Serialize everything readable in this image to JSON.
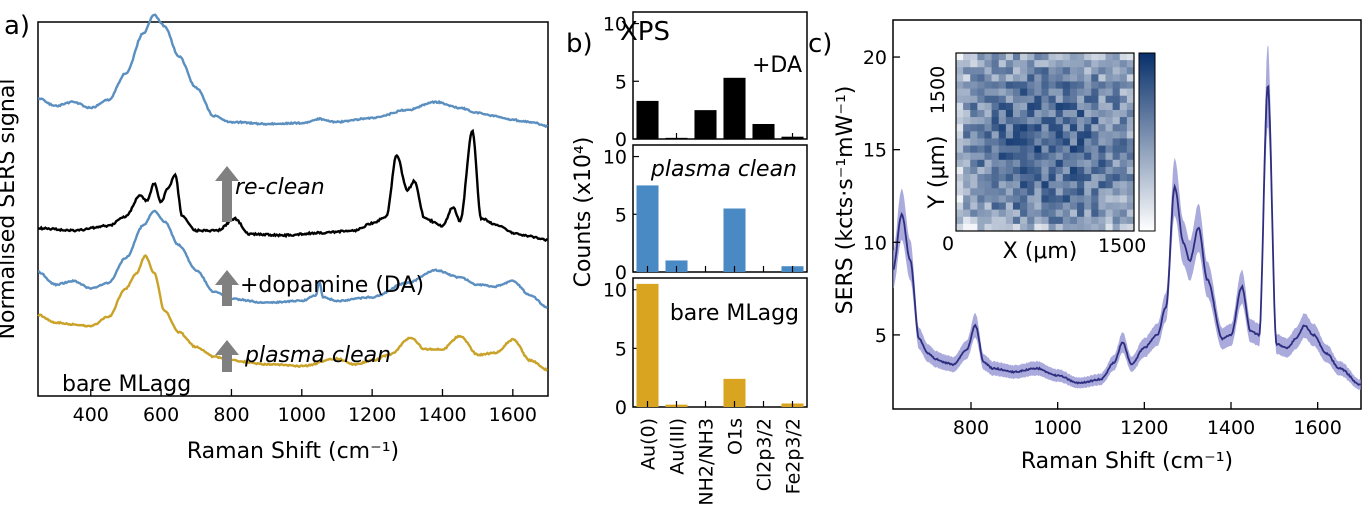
{
  "chart_data": [
    {
      "panel": "a)",
      "type": "line",
      "xlabel": "Raman Shift (cm⁻¹)",
      "ylabel": "Normalised SERS signal",
      "xlim": [
        250,
        1700
      ],
      "xticks": [
        "400",
        "600",
        "800",
        "1000",
        "1200",
        "1400",
        "1600"
      ],
      "xtick_values": [
        400,
        600,
        800,
        1000,
        1200,
        1400,
        1600
      ],
      "annotations": [
        "re-clean",
        "+dopamine (DA)",
        "plasma clean",
        "bare MLagg"
      ],
      "colors": {
        "blue": "#5b8fc0",
        "black": "#000000",
        "gold": "#c9a227",
        "arrow": "#808080"
      },
      "series": [
        {
          "color": "#5b8fc0",
          "offset": 3.0,
          "x": [
            250,
            300,
            350,
            400,
            450,
            500,
            550,
            580,
            610,
            650,
            700,
            750,
            800,
            900,
            1000,
            1050,
            1100,
            1200,
            1300,
            1380,
            1450,
            1500,
            1550,
            1600,
            1650,
            1700
          ],
          "y": [
            0.3,
            0.22,
            0.26,
            0.2,
            0.28,
            0.55,
            0.95,
            1.13,
            1.02,
            0.72,
            0.4,
            0.12,
            0.06,
            0.04,
            0.05,
            0.09,
            0.06,
            0.1,
            0.18,
            0.26,
            0.2,
            0.15,
            0.12,
            0.08,
            0.06,
            0.02
          ]
        },
        {
          "color": "#000000",
          "offset": 2.0,
          "x": [
            250,
            350,
            450,
            500,
            540,
            560,
            580,
            600,
            620,
            640,
            660,
            700,
            760,
            810,
            850,
            950,
            1050,
            1150,
            1200,
            1240,
            1270,
            1300,
            1320,
            1350,
            1400,
            1430,
            1450,
            1485,
            1510,
            1560,
            1600,
            1650,
            1700
          ],
          "y": [
            0.1,
            0.08,
            0.12,
            0.2,
            0.38,
            0.33,
            0.48,
            0.32,
            0.44,
            0.55,
            0.2,
            0.08,
            0.08,
            0.18,
            0.05,
            0.04,
            0.06,
            0.08,
            0.14,
            0.2,
            0.72,
            0.42,
            0.5,
            0.18,
            0.12,
            0.28,
            0.16,
            0.92,
            0.18,
            0.12,
            0.06,
            0.03,
            0.0
          ]
        },
        {
          "color": "#5b8fc0",
          "offset": 1.0,
          "x": [
            250,
            300,
            350,
            400,
            450,
            500,
            550,
            580,
            610,
            650,
            700,
            750,
            800,
            900,
            1000,
            1040,
            1050,
            1060,
            1100,
            1200,
            1300,
            1380,
            1450,
            1500,
            1550,
            1600,
            1650,
            1700
          ],
          "y": [
            0.4,
            0.26,
            0.3,
            0.22,
            0.28,
            0.56,
            0.92,
            1.08,
            0.96,
            0.7,
            0.42,
            0.18,
            0.1,
            0.06,
            0.08,
            0.14,
            0.3,
            0.12,
            0.08,
            0.12,
            0.28,
            0.42,
            0.34,
            0.26,
            0.24,
            0.3,
            0.14,
            0.0
          ]
        },
        {
          "color": "#c9a227",
          "offset": 0.0,
          "x": [
            250,
            300,
            350,
            400,
            450,
            500,
            530,
            555,
            580,
            610,
            650,
            700,
            750,
            800,
            900,
            1000,
            1100,
            1150,
            1200,
            1250,
            1310,
            1350,
            1400,
            1450,
            1500,
            1550,
            1600,
            1650,
            1700
          ],
          "y": [
            0.58,
            0.5,
            0.48,
            0.46,
            0.56,
            0.86,
            1.02,
            1.2,
            1.02,
            0.62,
            0.4,
            0.24,
            0.14,
            0.1,
            0.06,
            0.04,
            0.12,
            0.06,
            0.1,
            0.16,
            0.34,
            0.22,
            0.22,
            0.36,
            0.16,
            0.18,
            0.32,
            0.1,
            0.0
          ]
        }
      ]
    },
    {
      "panel": "b)",
      "type": "bar",
      "title": "XPS",
      "ylabel": "Counts (x10⁴)",
      "categories": [
        "Au(0)",
        "Au(III)",
        "NH2/NH3",
        "O1s",
        "Cl2p3/2",
        "Fe2p3/2"
      ],
      "ylim": [
        0,
        11
      ],
      "yticks": [
        "0",
        "5",
        "10"
      ],
      "series": [
        {
          "name": "+DA",
          "color": "#000000",
          "values": [
            3.3,
            0.1,
            2.5,
            5.3,
            1.3,
            0.2
          ]
        },
        {
          "name": "plasma clean",
          "color": "#4a8ac4",
          "values": [
            7.5,
            1.0,
            0.0,
            5.5,
            0.0,
            0.5
          ]
        },
        {
          "name": "bare MLagg",
          "color": "#d9a521",
          "values": [
            10.5,
            0.2,
            0.0,
            2.4,
            0.0,
            0.3
          ]
        }
      ]
    },
    {
      "panel": "c)",
      "type": "line",
      "xlabel": "Raman Shift (cm⁻¹)",
      "ylabel": "SERS (kcts·s⁻¹mW⁻¹)",
      "xlim": [
        620,
        1700
      ],
      "ylim": [
        1,
        22
      ],
      "xticks": [
        "800",
        "1000",
        "1200",
        "1400",
        "1600"
      ],
      "xtick_values": [
        800,
        1000,
        1200,
        1400,
        1600
      ],
      "yticks": [
        "5",
        "10",
        "15",
        "20"
      ],
      "ytick_values": [
        5,
        10,
        15,
        20
      ],
      "colors": {
        "line": "#2e2e80",
        "band": "#8d8dd0"
      },
      "series": [
        {
          "x": [
            620,
            640,
            660,
            680,
            700,
            720,
            740,
            760,
            790,
            810,
            830,
            850,
            900,
            950,
            1000,
            1050,
            1100,
            1130,
            1150,
            1170,
            1200,
            1230,
            1250,
            1270,
            1290,
            1305,
            1325,
            1345,
            1380,
            1400,
            1425,
            1445,
            1465,
            1485,
            1505,
            1530,
            1550,
            1570,
            1590,
            1620,
            1650,
            1700
          ],
          "y": [
            8.5,
            11.5,
            9.0,
            4.8,
            4.0,
            3.7,
            3.5,
            3.4,
            4.2,
            5.5,
            3.5,
            3.2,
            3.0,
            3.2,
            2.8,
            2.4,
            2.6,
            3.5,
            4.6,
            3.4,
            4.3,
            5.0,
            6.5,
            13.0,
            10.0,
            9.0,
            10.8,
            8.0,
            4.8,
            5.0,
            7.6,
            5.2,
            5.0,
            18.5,
            4.5,
            4.3,
            4.8,
            5.5,
            5.0,
            4.0,
            3.2,
            2.3
          ],
          "band": 0.12
        }
      ]
    },
    {
      "panel": "c) inset",
      "type": "heatmap",
      "xlabel": "X (μm)",
      "ylabel": "Y (μm)",
      "xticks": [
        "0",
        "1500"
      ],
      "yticks": [
        "1500"
      ],
      "colormap": [
        "#ffffff",
        "#08306b"
      ],
      "rows": 25,
      "cols": 25
    }
  ]
}
